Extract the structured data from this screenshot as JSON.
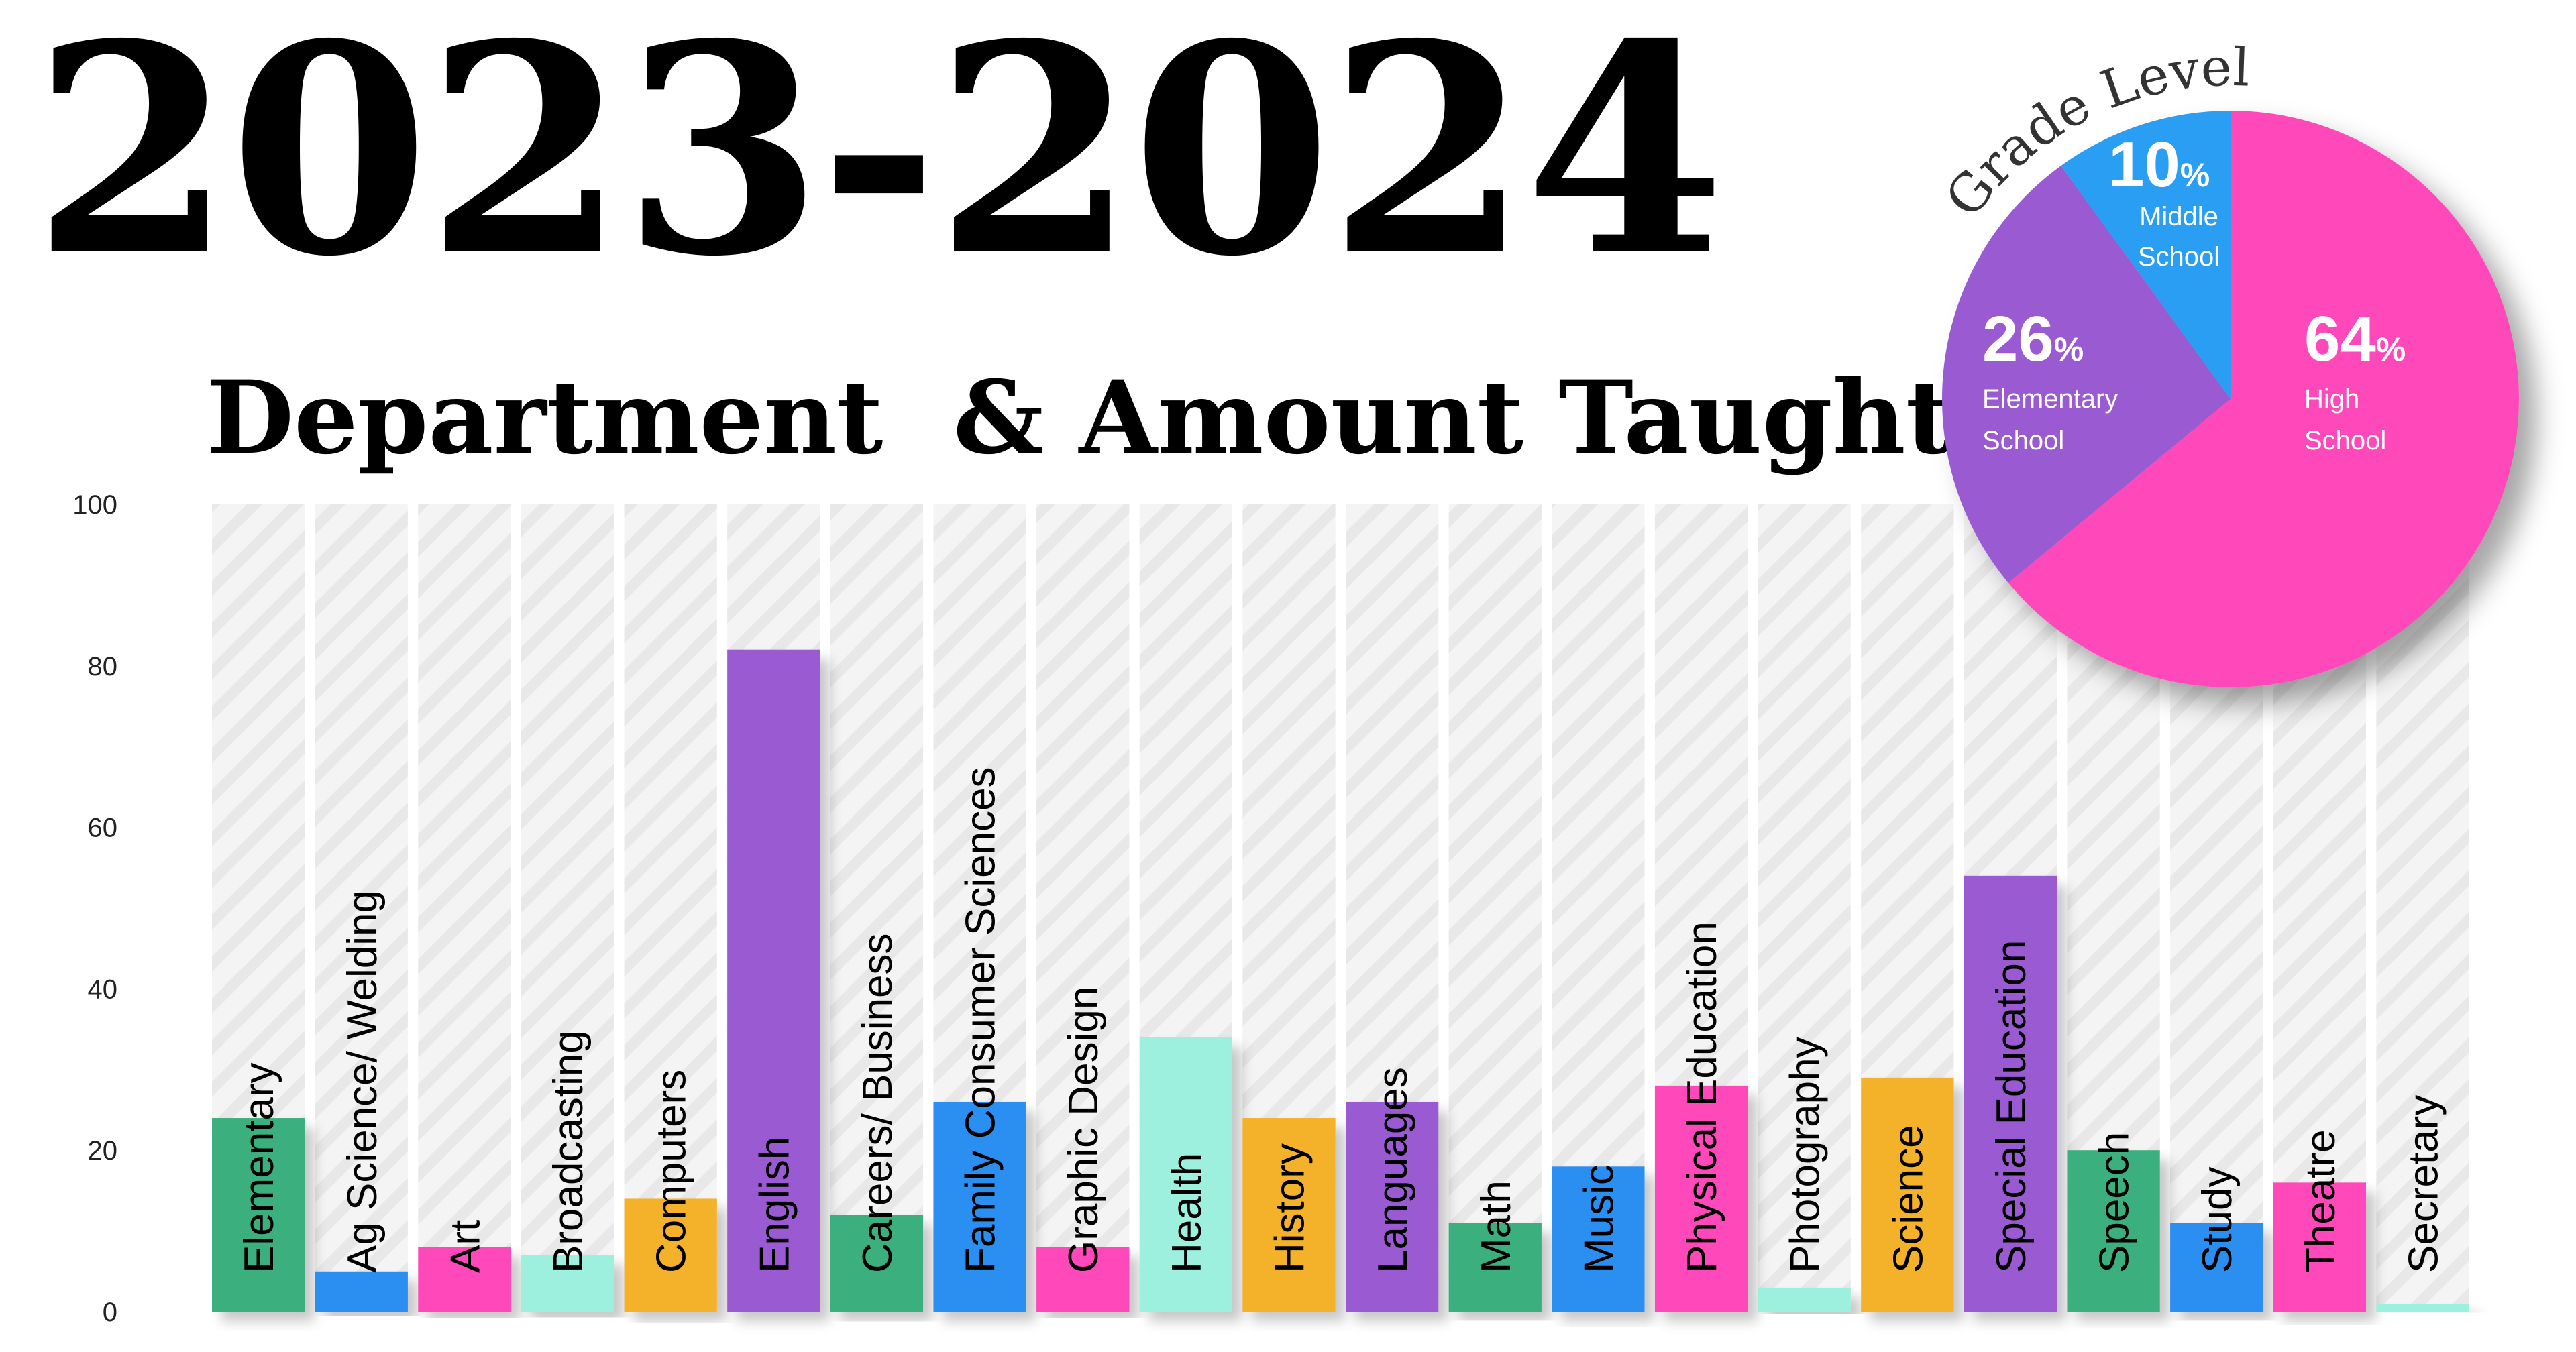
{
  "header": {
    "year": "2023-2024",
    "chart_title": "Department  & Amount Taught"
  },
  "chart_data": [
    {
      "type": "bar",
      "title": "Department  & Amount Taught",
      "xlabel": "",
      "ylabel": "",
      "ylim": [
        0,
        100
      ],
      "yticks": [
        "0",
        "20",
        "40",
        "60",
        "80",
        "100"
      ],
      "grid": false,
      "categories": [
        "Elementary",
        "Ag Science/ Welding",
        "Art",
        "Broadcasting",
        "Computers",
        "English",
        "Careers/ Business",
        "Family Consumer Sciences",
        "Graphic Design",
        "Health",
        "History",
        "Languages",
        "Math",
        "Music",
        "Physical Education",
        "Photography",
        "Science",
        "Special Education",
        "Speech",
        "Study",
        "Theatre",
        "Secretary"
      ],
      "values": [
        24,
        5,
        8,
        7,
        14,
        82,
        12,
        26,
        8,
        34,
        24,
        26,
        11,
        18,
        28,
        3,
        29,
        54,
        20,
        11,
        16,
        1
      ],
      "colors": [
        "#3aaf7e",
        "#2b8ff0",
        "#ff4aba",
        "#9ef0de",
        "#f4b12a",
        "#9a5ad1",
        "#3aaf7e",
        "#2b8ff0",
        "#ff4aba",
        "#9ef0de",
        "#f4b12a",
        "#9a5ad1",
        "#3aaf7e",
        "#2b8ff0",
        "#ff4aba",
        "#9ef0de",
        "#f4b12a",
        "#9a5ad1",
        "#3aaf7e",
        "#2b8ff0",
        "#ff4aba",
        "#9ef0de"
      ]
    },
    {
      "type": "pie",
      "title": "Grade Level",
      "slices": [
        {
          "label_line1": "High",
          "label_line2": "School",
          "label": "High School",
          "pct_number": "64",
          "value": 64,
          "color": "#ff4aba"
        },
        {
          "label_line1": "Elementary",
          "label_line2": "School",
          "label": "Elementary School",
          "pct_number": "26",
          "value": 26,
          "color": "#9a5ad1"
        },
        {
          "label_line1": "Middle",
          "label_line2": "School",
          "label": "Middle School",
          "pct_number": "10",
          "value": 10,
          "color": "#2b9ef2"
        }
      ],
      "percent_sign": "%"
    }
  ]
}
